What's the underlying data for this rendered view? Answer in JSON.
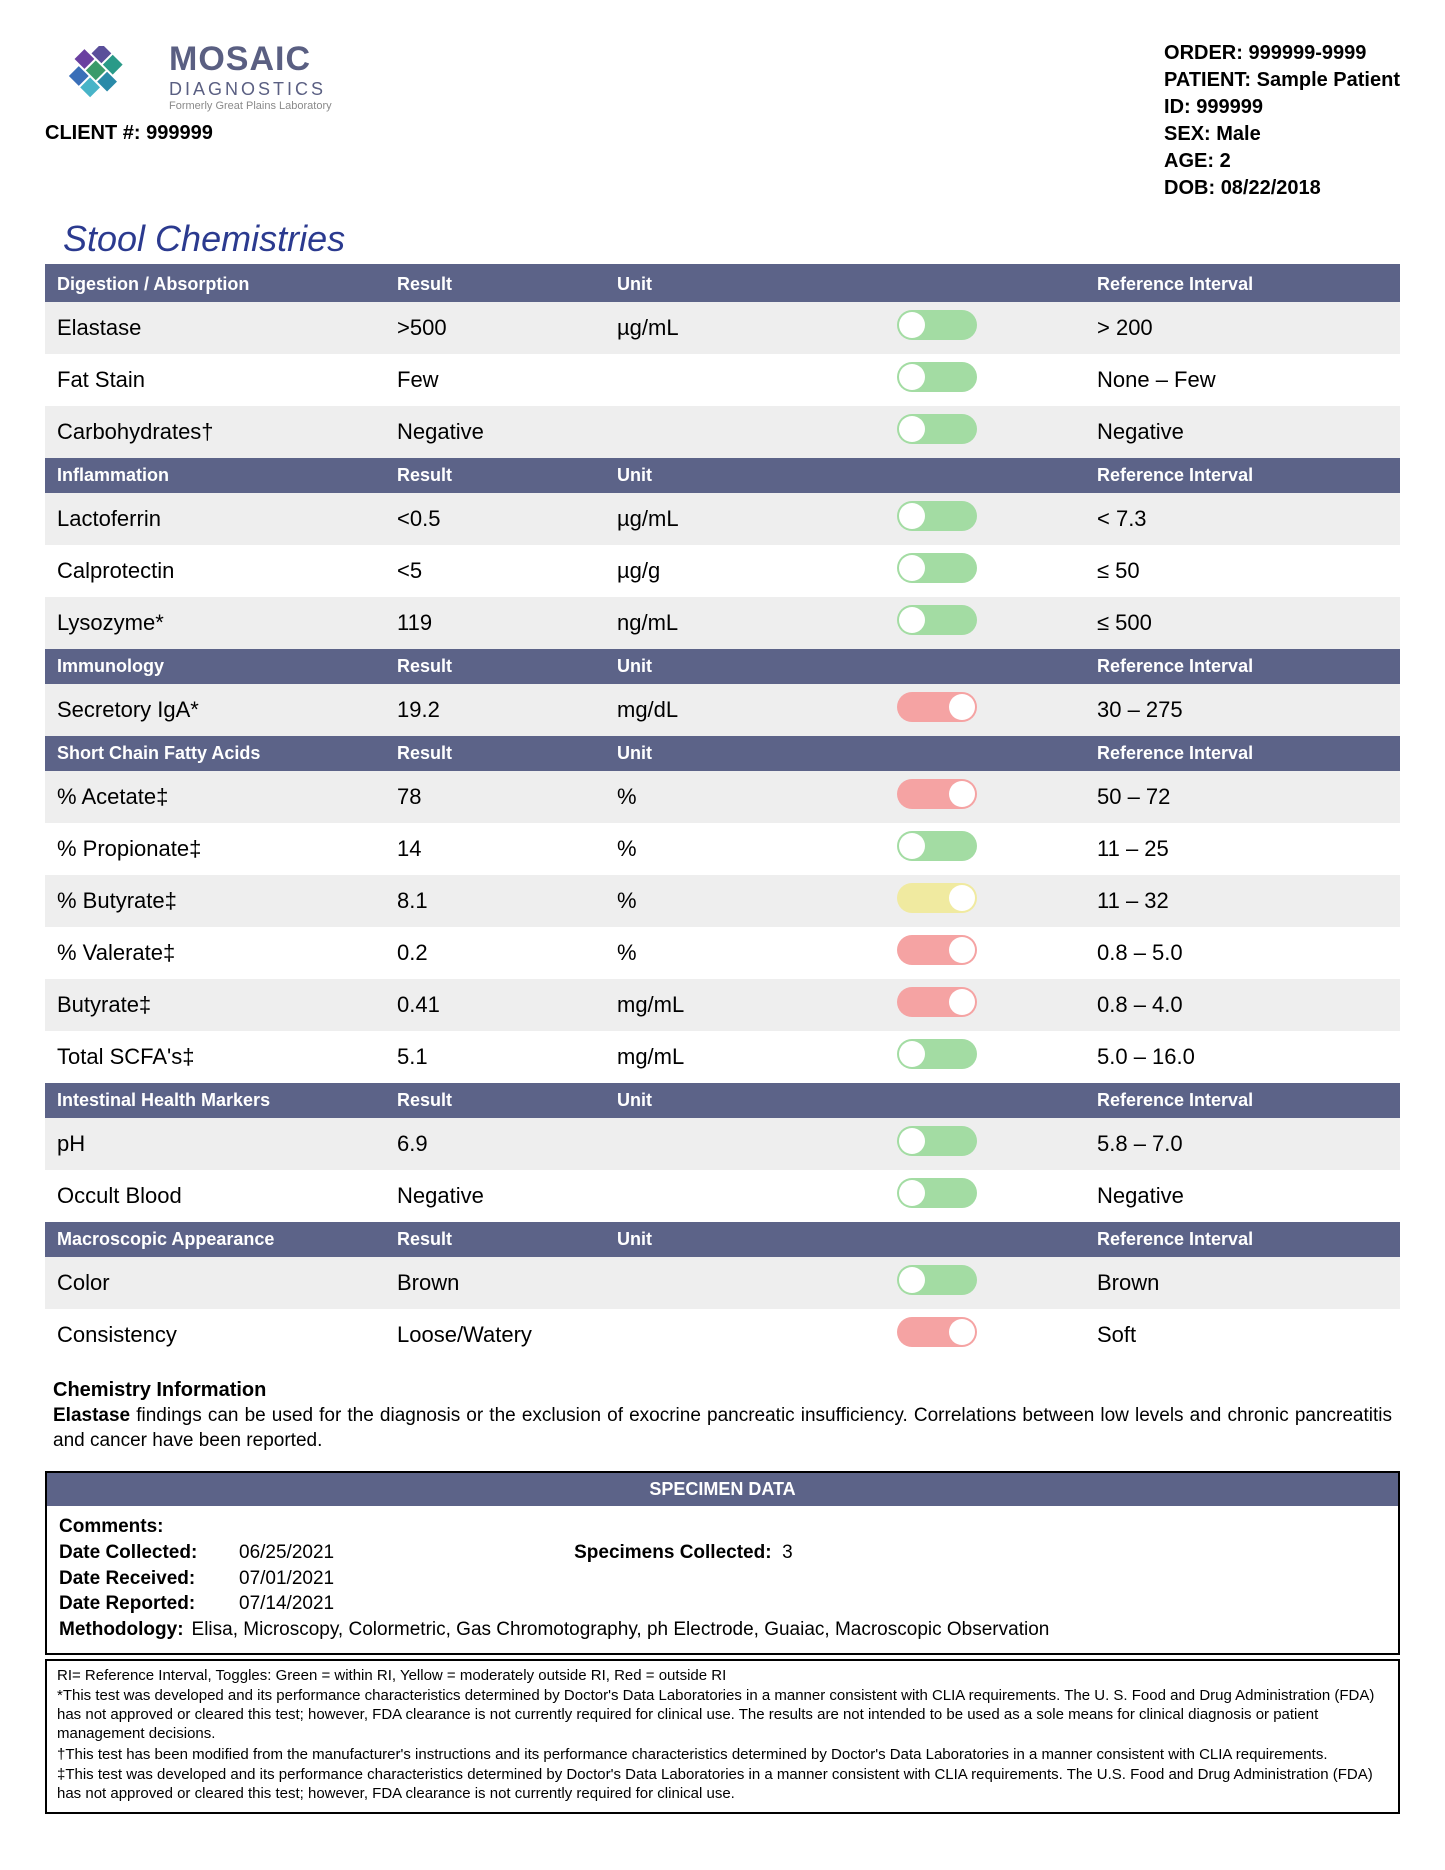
{
  "colors": {
    "header_bg": "#5c6388",
    "title_color": "#2b3a8f",
    "row_even": "#eeeeee",
    "row_odd": "#ffffff",
    "toggle_green": "#a3dca3",
    "toggle_red": "#f5a3a3",
    "toggle_yellow": "#f0eaa0",
    "brand_color": "#5a5f82"
  },
  "logo": {
    "brand": "MOSAIC",
    "sub": "DIAGNOSTICS",
    "tagline": "Formerly Great Plains Laboratory"
  },
  "client": {
    "label": "CLIENT #:",
    "value": "999999"
  },
  "patient": {
    "order_label": "ORDER:",
    "order": "999999-9999",
    "patient_label": "PATIENT:",
    "patient": "Sample Patient",
    "id_label": "ID:",
    "id": "999999",
    "sex_label": "SEX:",
    "sex": "Male",
    "age_label": "AGE:",
    "age": "2",
    "dob_label": "DOB:",
    "dob": "08/22/2018"
  },
  "page_title": "Stool Chemistries",
  "col_headers": {
    "c1": "",
    "c2": "Result",
    "c3": "Unit",
    "c4": "",
    "c5": "Reference Interval"
  },
  "sections": [
    {
      "title": "Digestion / Absorption",
      "rows": [
        {
          "name": "Elastase",
          "result": ">500",
          "unit": "µg/mL",
          "toggle": "green",
          "pos": "left",
          "ref": "> 200"
        },
        {
          "name": "Fat Stain",
          "result": "Few",
          "unit": "",
          "toggle": "green",
          "pos": "left",
          "ref": "None – Few"
        },
        {
          "name": "Carbohydrates†",
          "result": "Negative",
          "unit": "",
          "toggle": "green",
          "pos": "left",
          "ref": "Negative"
        }
      ]
    },
    {
      "title": "Inflammation",
      "rows": [
        {
          "name": "Lactoferrin",
          "result": "<0.5",
          "unit": "µg/mL",
          "toggle": "green",
          "pos": "left",
          "ref": "< 7.3"
        },
        {
          "name": "Calprotectin",
          "result": "<5",
          "unit": "µg/g",
          "toggle": "green",
          "pos": "left",
          "ref": "≤ 50"
        },
        {
          "name": "Lysozyme*",
          "result": "119",
          "unit": "ng/mL",
          "toggle": "green",
          "pos": "left",
          "ref": "≤ 500"
        }
      ]
    },
    {
      "title": "Immunology",
      "rows": [
        {
          "name": "Secretory IgA*",
          "result": "19.2",
          "unit": "mg/dL",
          "toggle": "red",
          "pos": "right",
          "ref": "30 – 275"
        }
      ]
    },
    {
      "title": "Short Chain Fatty Acids",
      "rows": [
        {
          "name": "% Acetate‡",
          "result": "78",
          "unit": "%",
          "toggle": "red",
          "pos": "right",
          "ref": "50 – 72"
        },
        {
          "name": "% Propionate‡",
          "result": "14",
          "unit": "%",
          "toggle": "green",
          "pos": "left",
          "ref": "11 – 25"
        },
        {
          "name": "% Butyrate‡",
          "result": "8.1",
          "unit": "%",
          "toggle": "yellow",
          "pos": "right",
          "ref": "11 – 32"
        },
        {
          "name": "% Valerate‡",
          "result": "0.2",
          "unit": "%",
          "toggle": "red",
          "pos": "right",
          "ref": "0.8 – 5.0"
        },
        {
          "name": "Butyrate‡",
          "result": "0.41",
          "unit": "mg/mL",
          "toggle": "red",
          "pos": "right",
          "ref": "0.8 – 4.0"
        },
        {
          "name": "Total SCFA's‡",
          "result": "5.1",
          "unit": "mg/mL",
          "toggle": "green",
          "pos": "left",
          "ref": "5.0 – 16.0"
        }
      ]
    },
    {
      "title": "Intestinal Health Markers",
      "rows": [
        {
          "name": "pH",
          "result": "6.9",
          "unit": "",
          "toggle": "green",
          "pos": "left",
          "ref": "5.8 – 7.0"
        },
        {
          "name": "Occult Blood",
          "result": "Negative",
          "unit": "",
          "toggle": "green",
          "pos": "left",
          "ref": "Negative"
        }
      ]
    },
    {
      "title": "Macroscopic Appearance",
      "rows": [
        {
          "name": "Color",
          "result": "Brown",
          "unit": "",
          "toggle": "green",
          "pos": "left",
          "ref": "Brown"
        },
        {
          "name": "Consistency",
          "result": "Loose/Watery",
          "unit": "",
          "toggle": "red",
          "pos": "right",
          "ref": "Soft"
        }
      ]
    }
  ],
  "chem_info": {
    "heading": "Chemistry Information",
    "bold": "Elastase",
    "text": " findings can be used for the diagnosis or the exclusion of exocrine pancreatic insufficiency. Correlations between low levels and chronic pancreatitis and cancer have been reported."
  },
  "specimen": {
    "header": "SPECIMEN DATA",
    "comments_label": "Comments:",
    "collected_label": "Date Collected:",
    "collected": "06/25/2021",
    "received_label": "Date Received:",
    "received": "07/01/2021",
    "reported_label": "Date Reported:",
    "reported": "07/14/2021",
    "spec_coll_label": "Specimens Collected:",
    "spec_coll": "3",
    "methodology_label": "Methodology:",
    "methodology": "Elisa, Microscopy, Colormetric, Gas Chromotography, ph Electrode, Guaiac, Macroscopic Observation"
  },
  "footnotes": [
    "RI= Reference Interval, Toggles: Green = within RI, Yellow = moderately outside RI, Red = outside RI",
    "*This test was developed and its performance characteristics determined by Doctor's Data Laboratories in a manner consistent with CLIA requirements. The U. S. Food and Drug Administration (FDA) has not approved or cleared this test; however, FDA clearance is not currently required for clinical use. The results are not intended to be used as a sole means for clinical diagnosis or patient management decisions.",
    "†This test has been modified from the manufacturer's instructions and its performance characteristics determined by Doctor's Data Laboratories in a manner consistent with CLIA requirements.",
    "‡This test was developed and its performance characteristics determined by Doctor's Data Laboratories in a manner consistent with CLIA requirements. The U.S. Food and Drug Administration (FDA) has not approved or cleared this test; however, FDA clearance is not currently required for clinical use."
  ]
}
